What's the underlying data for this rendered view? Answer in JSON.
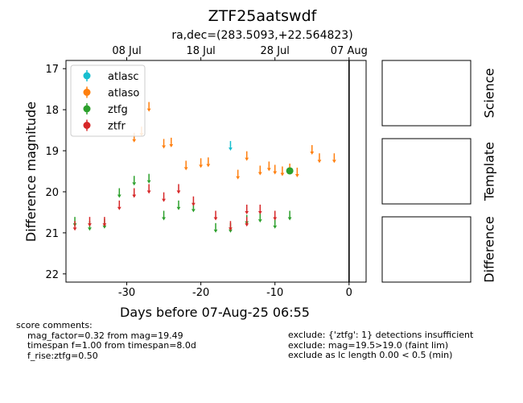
{
  "chart_data": {
    "type": "scatter",
    "title": "ZTF25aatswdf",
    "subtitle": "ra,dec=(283.5093,+22.564823)",
    "xlabel": "Days before 07-Aug-25 06:55",
    "ylabel": "Difference magnitude",
    "xlim": [
      -38.2,
      2.3
    ],
    "ylim": [
      22.2,
      16.8
    ],
    "y_inverted": true,
    "x_ticks": [
      -30,
      -20,
      -10,
      0
    ],
    "y_ticks": [
      17,
      18,
      19,
      20,
      21,
      22
    ],
    "top_axis_ticks": [
      {
        "label": "08 Jul",
        "x": -30
      },
      {
        "label": "18 Jul",
        "x": -20
      },
      {
        "label": "28 Jul",
        "x": -10
      },
      {
        "label": "07 Aug",
        "x": 0
      }
    ],
    "reference_line_x": 0,
    "legend_position": "top-left",
    "series": [
      {
        "name": "atlasc",
        "color": "#17becf",
        "marker": "arrow",
        "points": [
          [
            -16.0,
            18.9
          ]
        ]
      },
      {
        "name": "atlaso",
        "color": "#ff7f0e",
        "marker": "arrow",
        "points": [
          [
            -29.0,
            18.7
          ],
          [
            -28.0,
            18.55
          ],
          [
            -27.0,
            17.95
          ],
          [
            -25.0,
            18.85
          ],
          [
            -24.0,
            18.82
          ],
          [
            -22.0,
            19.38
          ],
          [
            -20.0,
            19.32
          ],
          [
            -19.0,
            19.3
          ],
          [
            -15.0,
            19.6
          ],
          [
            -13.8,
            19.15
          ],
          [
            -12.0,
            19.5
          ],
          [
            -10.8,
            19.4
          ],
          [
            -10.0,
            19.48
          ],
          [
            -9.0,
            19.52
          ],
          [
            -8.0,
            19.45
          ],
          [
            -7.0,
            19.55
          ],
          [
            -5.0,
            19.0
          ],
          [
            -4.0,
            19.2
          ],
          [
            -2.0,
            19.2
          ]
        ]
      },
      {
        "name": "ztfg",
        "color": "#2ca02c",
        "marker": "arrow",
        "points": [
          [
            -37.0,
            20.75
          ],
          [
            -35.0,
            20.85
          ],
          [
            -33.0,
            20.8
          ],
          [
            -31.0,
            20.05
          ],
          [
            -29.0,
            19.75
          ],
          [
            -27.0,
            19.7
          ],
          [
            -25.0,
            20.6
          ],
          [
            -23.0,
            20.35
          ],
          [
            -21.0,
            20.4
          ],
          [
            -18.0,
            20.9
          ],
          [
            -16.0,
            20.9
          ],
          [
            -13.8,
            20.7
          ],
          [
            -12.0,
            20.65
          ],
          [
            -10.0,
            20.8
          ],
          [
            -8.0,
            20.6
          ]
        ],
        "detections": [
          [
            -8.0,
            19.49
          ]
        ]
      },
      {
        "name": "ztfr",
        "color": "#d62728",
        "marker": "arrow",
        "points": [
          [
            -37.0,
            20.85
          ],
          [
            -35.0,
            20.75
          ],
          [
            -33.0,
            20.75
          ],
          [
            -31.0,
            20.35
          ],
          [
            -29.0,
            20.05
          ],
          [
            -27.0,
            19.95
          ],
          [
            -25.0,
            20.15
          ],
          [
            -23.0,
            19.95
          ],
          [
            -21.0,
            20.25
          ],
          [
            -18.0,
            20.6
          ],
          [
            -16.0,
            20.85
          ],
          [
            -13.8,
            20.45
          ],
          [
            -13.8,
            20.75
          ],
          [
            -12.0,
            20.45
          ],
          [
            -10.0,
            20.6
          ]
        ]
      }
    ]
  },
  "panels": [
    {
      "label": "Science"
    },
    {
      "label": "Template"
    },
    {
      "label": "Difference"
    }
  ],
  "score_comments": [
    "score comments:",
    "    mag_factor=0.32 from mag=19.49",
    "    timespan f=1.00 from timespan=8.0d",
    "    f_rise:ztfg=0.50"
  ],
  "exclude_comments": [
    "exclude: {'ztfg': 1} detections insufficient",
    "exclude: mag=19.5>19.0 (faint lim)",
    "exclude as lc length 0.00 < 0.5 (min)"
  ]
}
